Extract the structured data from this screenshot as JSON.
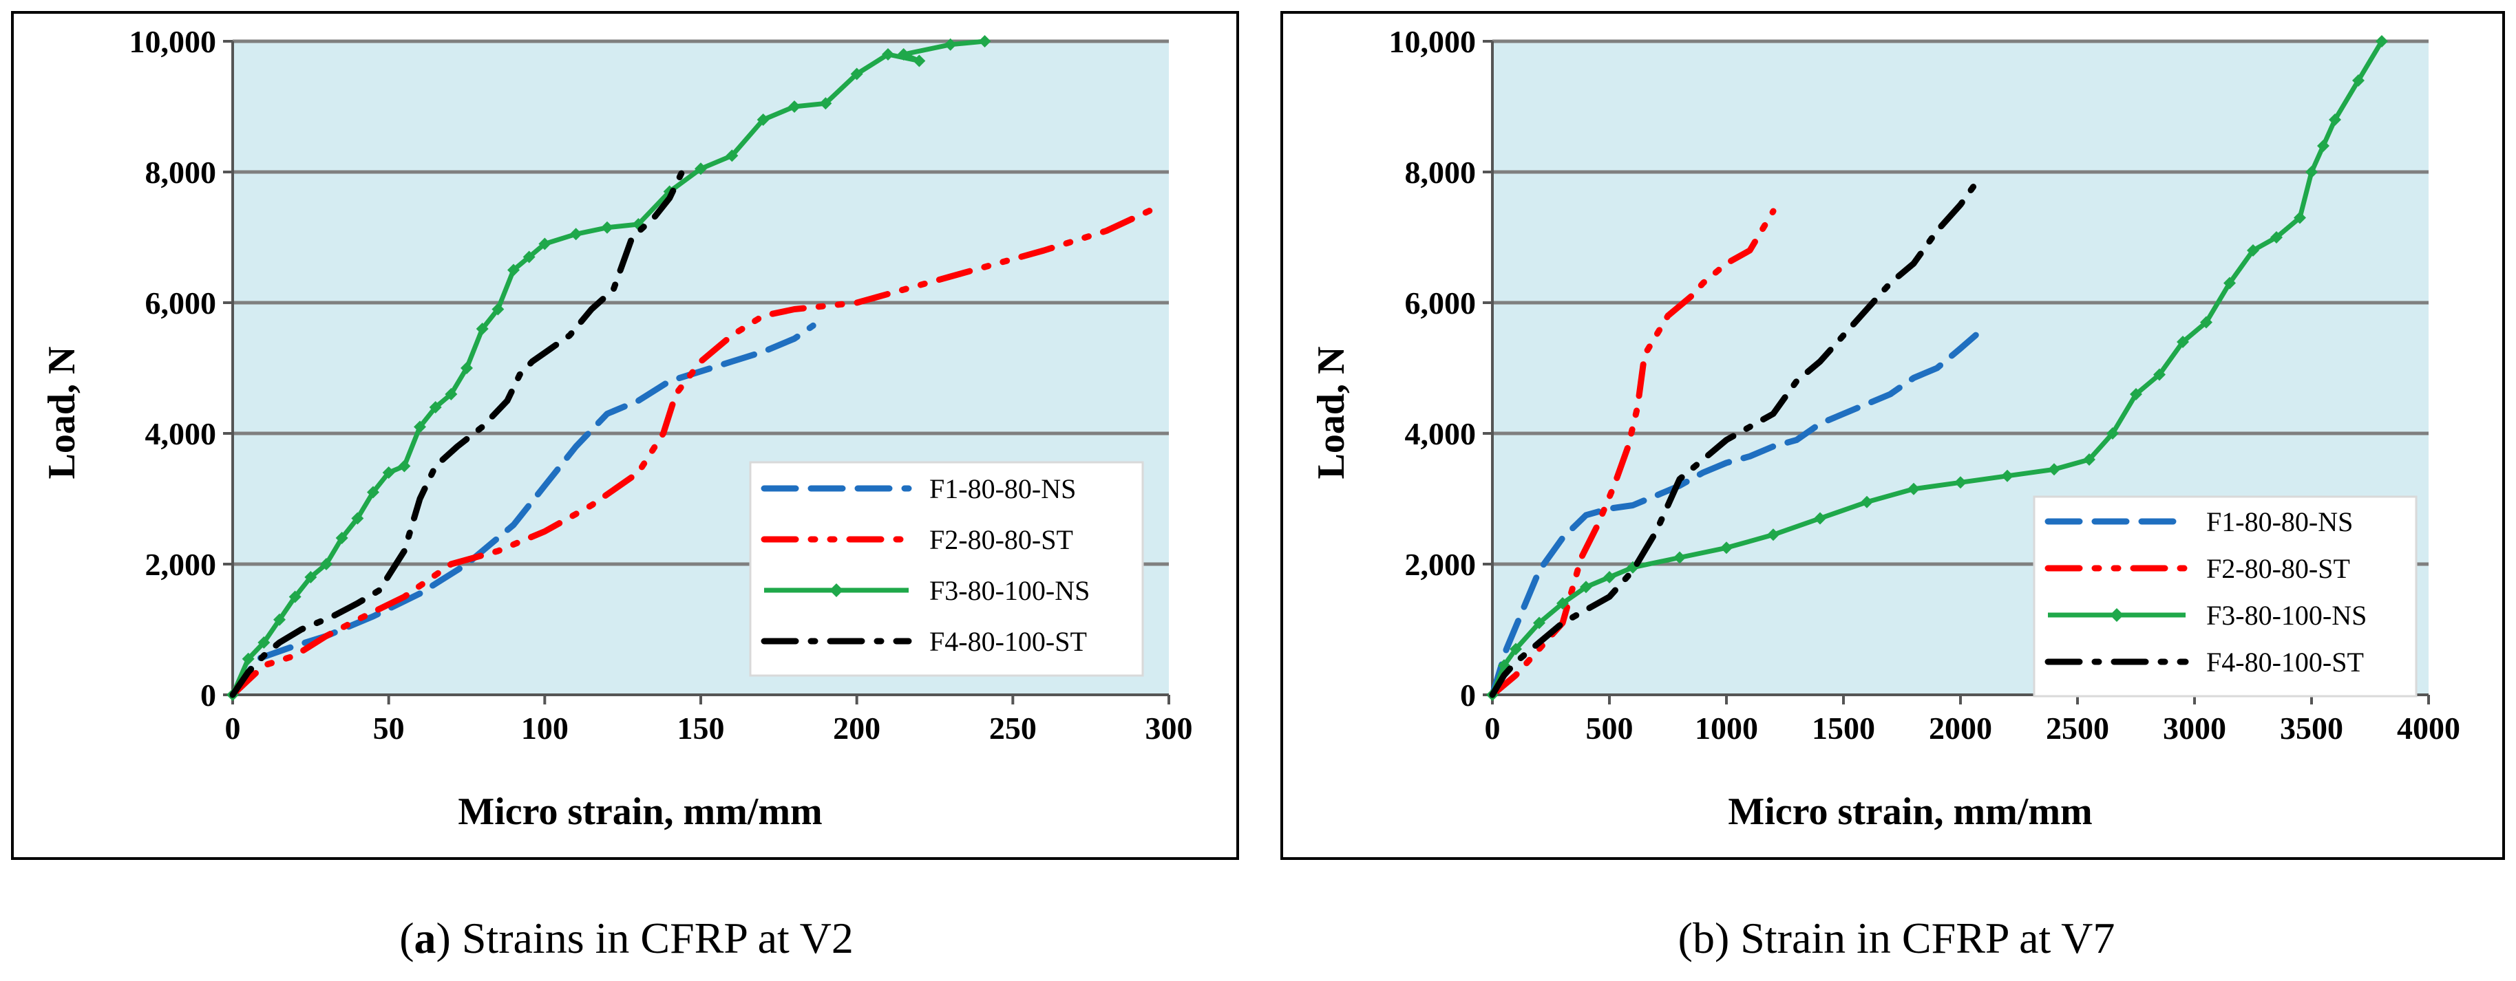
{
  "chart_data": [
    {
      "type": "line",
      "caption_bold": "a",
      "caption_rest": "Strains in CFRP at V2",
      "xlabel": "Micro strain, mm/mm",
      "ylabel": "Load, N",
      "xlim": [
        0,
        300
      ],
      "ylim": [
        0,
        10000
      ],
      "xticks": [
        0,
        50,
        100,
        150,
        200,
        250,
        300
      ],
      "xtick_labels": [
        "0",
        "50",
        "100",
        "150",
        "200",
        "250",
        "300"
      ],
      "yticks": [
        0,
        2000,
        4000,
        6000,
        8000,
        10000
      ],
      "ytick_labels": [
        "0",
        "2,000",
        "4,000",
        "6,000",
        "8,000",
        "10,000"
      ],
      "grid": "horizontal",
      "legend_position": "lower-right",
      "series": [
        {
          "name": "F1-80-80-NS",
          "color": "#1f6fc0",
          "style": "dash",
          "x": [
            0,
            8,
            20,
            30,
            45,
            60,
            75,
            90,
            100,
            110,
            120,
            130,
            140,
            150,
            160,
            170,
            180,
            186
          ],
          "y": [
            0,
            550,
            750,
            900,
            1200,
            1550,
            2000,
            2600,
            3200,
            3800,
            4300,
            4500,
            4800,
            4950,
            5100,
            5250,
            5450,
            5650
          ]
        },
        {
          "name": "F2-80-80-ST",
          "color": "#ff0000",
          "style": "dashdotdot",
          "x": [
            0,
            10,
            20,
            30,
            40,
            55,
            70,
            85,
            100,
            115,
            130,
            138,
            142,
            150,
            160,
            170,
            180,
            200,
            230,
            260,
            280,
            298
          ],
          "y": [
            0,
            450,
            600,
            900,
            1150,
            1500,
            2000,
            2200,
            2500,
            2900,
            3400,
            4000,
            4600,
            5100,
            5500,
            5800,
            5900,
            6000,
            6400,
            6800,
            7100,
            7500
          ]
        },
        {
          "name": "F3-80-100-NS",
          "color": "#1fa84a",
          "style": "solid-markers",
          "x": [
            0,
            5,
            10,
            15,
            20,
            25,
            30,
            35,
            40,
            45,
            50,
            55,
            60,
            65,
            70,
            75,
            80,
            85,
            90,
            95,
            100,
            110,
            120,
            130,
            140,
            150,
            160,
            170,
            180,
            190,
            200,
            210,
            220,
            215,
            230,
            241
          ],
          "y": [
            0,
            550,
            800,
            1150,
            1500,
            1800,
            2000,
            2400,
            2700,
            3100,
            3400,
            3500,
            4100,
            4400,
            4600,
            5000,
            5600,
            5900,
            6500,
            6700,
            6900,
            7050,
            7150,
            7200,
            7700,
            8050,
            8250,
            8800,
            9000,
            9050,
            9500,
            9800,
            9700,
            9800,
            9950,
            10000
          ]
        },
        {
          "name": "F4-80-100-ST",
          "color": "#000000",
          "style": "dashdot",
          "x": [
            0,
            5,
            10,
            15,
            22,
            32,
            40,
            47,
            55,
            60,
            65,
            72,
            80,
            88,
            92,
            96,
            102,
            108,
            115,
            122,
            128,
            135,
            140,
            144
          ],
          "y": [
            0,
            350,
            600,
            800,
            1000,
            1200,
            1400,
            1600,
            2200,
            3000,
            3500,
            3800,
            4100,
            4500,
            4900,
            5100,
            5300,
            5500,
            5900,
            6200,
            7000,
            7300,
            7600,
            8000
          ]
        }
      ]
    },
    {
      "type": "line",
      "caption_bold": "",
      "caption_rest": "(b) Strain in CFRP at V7",
      "xlabel": "Micro strain, mm/mm",
      "ylabel": "Load, N",
      "xlim": [
        0,
        4000
      ],
      "ylim": [
        0,
        10000
      ],
      "xticks": [
        0,
        500,
        1000,
        1500,
        2000,
        2500,
        3000,
        3500,
        4000
      ],
      "xtick_labels": [
        "0",
        "500",
        "1000",
        "1500",
        "2000",
        "2500",
        "3000",
        "3500",
        "4000"
      ],
      "yticks": [
        0,
        2000,
        4000,
        6000,
        8000,
        10000
      ],
      "ytick_labels": [
        "0",
        "2,000",
        "4,000",
        "6,000",
        "8,000",
        "10,000"
      ],
      "grid": "horizontal",
      "legend_position": "lower-right",
      "series": [
        {
          "name": "F1-80-80-NS",
          "color": "#1f6fc0",
          "style": "dash",
          "x": [
            0,
            60,
            130,
            200,
            300,
            400,
            500,
            600,
            700,
            800,
            900,
            1000,
            1100,
            1200,
            1300,
            1400,
            1500,
            1600,
            1700,
            1800,
            1900,
            2000,
            2080
          ],
          "y": [
            0,
            700,
            1300,
            1900,
            2400,
            2750,
            2850,
            2900,
            3050,
            3200,
            3400,
            3550,
            3650,
            3800,
            3900,
            4150,
            4300,
            4450,
            4600,
            4850,
            5000,
            5300,
            5550
          ]
        },
        {
          "name": "F2-80-80-ST",
          "color": "#ff0000",
          "style": "dashdotdot",
          "x": [
            0,
            100,
            200,
            300,
            380,
            450,
            520,
            580,
            620,
            650,
            700,
            750,
            800,
            850,
            900,
            1000,
            1100,
            1150,
            1200
          ],
          "y": [
            0,
            300,
            700,
            1100,
            2100,
            2600,
            3200,
            3800,
            4400,
            5200,
            5500,
            5800,
            5950,
            6100,
            6300,
            6600,
            6800,
            7100,
            7400
          ]
        },
        {
          "name": "F3-80-100-NS",
          "color": "#1fa84a",
          "style": "solid-markers",
          "x": [
            0,
            50,
            100,
            200,
            300,
            400,
            500,
            600,
            800,
            1000,
            1200,
            1400,
            1600,
            1800,
            2000,
            2200,
            2400,
            2550,
            2650,
            2750,
            2850,
            2950,
            3050,
            3150,
            3250,
            3350,
            3450,
            3500,
            3550,
            3600,
            3700,
            3800
          ],
          "y": [
            0,
            450,
            700,
            1100,
            1400,
            1650,
            1800,
            1950,
            2100,
            2250,
            2450,
            2700,
            2950,
            3150,
            3250,
            3350,
            3450,
            3600,
            4000,
            4600,
            4900,
            5400,
            5700,
            6300,
            6800,
            7000,
            7300,
            8000,
            8400,
            8800,
            9400,
            10000
          ]
        },
        {
          "name": "F4-80-100-ST",
          "color": "#000000",
          "style": "dashdot",
          "x": [
            0,
            50,
            100,
            200,
            300,
            400,
            500,
            600,
            700,
            800,
            900,
            1000,
            1100,
            1200,
            1300,
            1400,
            1500,
            1600,
            1700,
            1800,
            1900,
            2000,
            2080
          ],
          "y": [
            0,
            300,
            500,
            800,
            1100,
            1300,
            1500,
            1900,
            2500,
            3300,
            3600,
            3900,
            4100,
            4300,
            4800,
            5100,
            5500,
            5900,
            6300,
            6600,
            7100,
            7500,
            7900
          ]
        }
      ]
    }
  ]
}
